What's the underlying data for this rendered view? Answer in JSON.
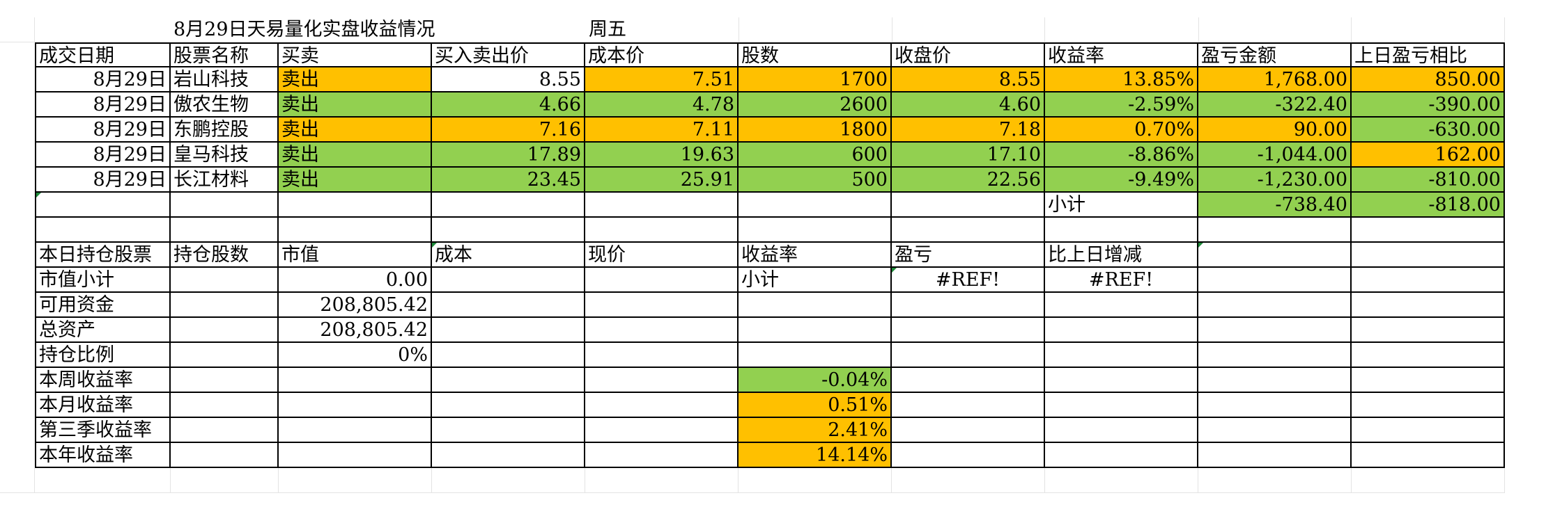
{
  "header": {
    "title": "8月29日天易量化实盘收益情况",
    "weekday": "周五"
  },
  "trades_table": {
    "headers": [
      "成交日期",
      "股票名称",
      "买卖",
      "买入卖出价",
      "成本价",
      "股数",
      "收盘价",
      "收益率",
      "盈亏金额",
      "上日盈亏相比"
    ],
    "rows": [
      [
        "8月29日",
        "岩山科技",
        "卖出",
        "8.55",
        "7.51",
        "1700",
        "8.55",
        "13.85%",
        "1,768.00",
        "850.00"
      ],
      [
        "8月29日",
        "傲农生物",
        "卖出",
        "4.66",
        "4.78",
        "2600",
        "4.60",
        "-2.59%",
        "-322.40",
        "-390.00"
      ],
      [
        "8月29日",
        "东鹏控股",
        "卖出",
        "7.16",
        "7.11",
        "1800",
        "7.18",
        "0.70%",
        "90.00",
        "-630.00"
      ],
      [
        "8月29日",
        "皇马科技",
        "卖出",
        "17.89",
        "19.63",
        "600",
        "17.10",
        "-8.86%",
        "-1,044.00",
        "162.00"
      ],
      [
        "8月29日",
        "长江材料",
        "卖出",
        "23.45",
        "25.91",
        "500",
        "22.56",
        "-9.49%",
        "-1,230.00",
        "-810.00"
      ]
    ],
    "subtotal": {
      "label": "小计",
      "pnl": "-738.40",
      "vs_prev": "-818.00"
    }
  },
  "positions_table": {
    "headers": [
      "本日持仓股票",
      "持仓股数",
      "市值",
      "成本",
      "现价",
      "收益率",
      "盈亏",
      "比上日增减"
    ],
    "market_value_subtotal": {
      "label": "市值小计",
      "value": "0.00",
      "subtotal_label": "小计",
      "pnl": "#REF!",
      "change": "#REF!"
    },
    "available_funds": {
      "label": "可用资金",
      "value": "208,805.42"
    },
    "total_assets": {
      "label": "总资产",
      "value": "208,805.42"
    },
    "position_ratio": {
      "label": "持仓比例",
      "value": "0%"
    },
    "returns": [
      {
        "label": "本周收益率",
        "value": "-0.04%"
      },
      {
        "label": "本月收益率",
        "value": "0.51%"
      },
      {
        "label": "第三季收益率",
        "value": "2.41%"
      },
      {
        "label": "本年收益率",
        "value": "14.14%"
      }
    ]
  },
  "colors": {
    "gain": "#ffc000",
    "loss": "#92d050",
    "grid": "#e3e3e3",
    "border": "#000000"
  }
}
